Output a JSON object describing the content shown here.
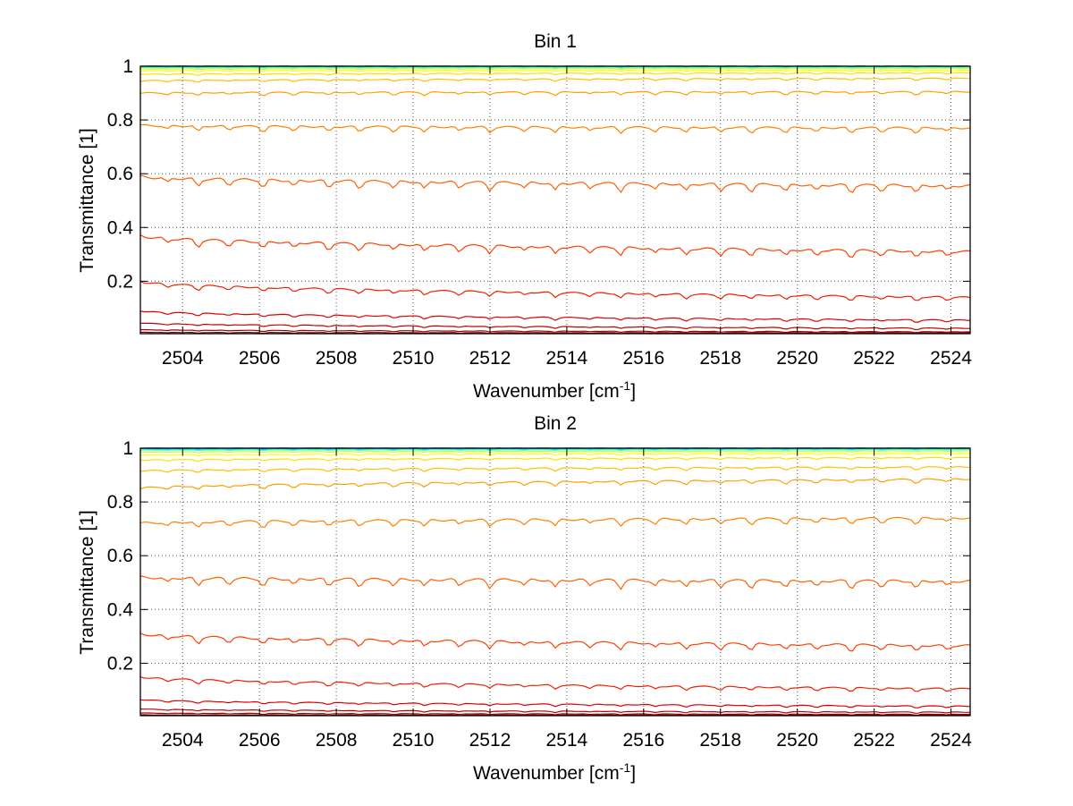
{
  "chart_data": [
    {
      "type": "line",
      "title": "Bin 1",
      "xlabel": "Wavenumber [cm",
      "xlabel_sup": "-1",
      "xlabel_tail": "]",
      "ylabel": "Transmittance [1]",
      "xlim": [
        2502.9,
        2524.5
      ],
      "ylim": [
        0.005,
        1.0
      ],
      "xticks": [
        2504,
        2506,
        2508,
        2510,
        2512,
        2514,
        2516,
        2518,
        2520,
        2522,
        2524
      ],
      "xtick_labels": [
        "2504",
        "2506",
        "2508",
        "2510",
        "2512",
        "2514",
        "2516",
        "2518",
        "2520",
        "2522",
        "2524"
      ],
      "yticks": [
        0.2,
        0.4,
        0.6,
        0.8,
        1.0
      ],
      "ytick_labels": [
        "0.2",
        "0.4",
        "0.6",
        "0.8",
        "1"
      ],
      "grid": true,
      "dip_positions": [
        2503.6,
        2504.4,
        2505.2,
        2506.1,
        2506.9,
        2507.8,
        2508.6,
        2509.5,
        2510.3,
        2511.2,
        2512.0,
        2512.9,
        2513.7,
        2514.6,
        2515.4,
        2516.3,
        2517.1,
        2518.0,
        2518.8,
        2519.7,
        2520.5,
        2521.4,
        2522.2,
        2523.1,
        2523.9
      ],
      "series": [
        {
          "start": 1.0,
          "end": 1.0,
          "color": "#00008f"
        },
        {
          "start": 0.999,
          "end": 0.999,
          "color": "#0040ff"
        },
        {
          "start": 0.998,
          "end": 0.998,
          "color": "#00bfff"
        },
        {
          "start": 0.995,
          "end": 0.996,
          "color": "#40ffbf"
        },
        {
          "start": 0.99,
          "end": 0.992,
          "color": "#bfff40"
        },
        {
          "start": 0.983,
          "end": 0.985,
          "color": "#ffff00"
        },
        {
          "start": 0.97,
          "end": 0.975,
          "color": "#ffdf00"
        },
        {
          "start": 0.945,
          "end": 0.955,
          "color": "#ffbf00"
        },
        {
          "start": 0.9,
          "end": 0.905,
          "color": "#ff9f00"
        },
        {
          "start": 0.78,
          "end": 0.77,
          "color": "#ff8000"
        },
        {
          "start": 0.59,
          "end": 0.555,
          "color": "#ff6000"
        },
        {
          "start": 0.37,
          "end": 0.31,
          "color": "#ff4000"
        },
        {
          "start": 0.2,
          "end": 0.14,
          "color": "#ef2000"
        },
        {
          "start": 0.09,
          "end": 0.055,
          "color": "#df0000"
        },
        {
          "start": 0.045,
          "end": 0.025,
          "color": "#bf0000"
        },
        {
          "start": 0.02,
          "end": 0.012,
          "color": "#9f0000"
        },
        {
          "start": 0.01,
          "end": 0.008,
          "color": "#800000"
        }
      ]
    },
    {
      "type": "line",
      "title": "Bin 2",
      "xlabel": "Wavenumber [cm",
      "xlabel_sup": "-1",
      "xlabel_tail": "]",
      "ylabel": "Transmittance [1]",
      "xlim": [
        2502.9,
        2524.5
      ],
      "ylim": [
        0.005,
        1.0
      ],
      "xticks": [
        2504,
        2506,
        2508,
        2510,
        2512,
        2514,
        2516,
        2518,
        2520,
        2522,
        2524
      ],
      "xtick_labels": [
        "2504",
        "2506",
        "2508",
        "2510",
        "2512",
        "2514",
        "2516",
        "2518",
        "2520",
        "2522",
        "2524"
      ],
      "yticks": [
        0.2,
        0.4,
        0.6,
        0.8,
        1.0
      ],
      "ytick_labels": [
        "0.2",
        "0.4",
        "0.6",
        "0.8",
        "1"
      ],
      "grid": true,
      "dip_positions": [
        2503.6,
        2504.4,
        2505.2,
        2506.1,
        2506.9,
        2507.8,
        2508.6,
        2509.5,
        2510.3,
        2511.2,
        2512.0,
        2512.9,
        2513.7,
        2514.6,
        2515.4,
        2516.3,
        2517.1,
        2518.0,
        2518.8,
        2519.7,
        2520.5,
        2521.4,
        2522.2,
        2523.1,
        2523.9
      ],
      "series": [
        {
          "start": 1.0,
          "end": 1.0,
          "color": "#00008f"
        },
        {
          "start": 0.999,
          "end": 0.999,
          "color": "#0040ff"
        },
        {
          "start": 0.997,
          "end": 0.998,
          "color": "#00bfff"
        },
        {
          "start": 0.993,
          "end": 0.995,
          "color": "#40ffbf"
        },
        {
          "start": 0.985,
          "end": 0.99,
          "color": "#bfff40"
        },
        {
          "start": 0.975,
          "end": 0.98,
          "color": "#ffff00"
        },
        {
          "start": 0.955,
          "end": 0.965,
          "color": "#ffdf00"
        },
        {
          "start": 0.915,
          "end": 0.93,
          "color": "#ffbf00"
        },
        {
          "start": 0.85,
          "end": 0.885,
          "color": "#ff9f00"
        },
        {
          "start": 0.72,
          "end": 0.74,
          "color": "#ff8000"
        },
        {
          "start": 0.52,
          "end": 0.505,
          "color": "#ff6000"
        },
        {
          "start": 0.31,
          "end": 0.265,
          "color": "#ff4000"
        },
        {
          "start": 0.15,
          "end": 0.105,
          "color": "#ef2000"
        },
        {
          "start": 0.065,
          "end": 0.04,
          "color": "#df0000"
        },
        {
          "start": 0.03,
          "end": 0.018,
          "color": "#bf0000"
        },
        {
          "start": 0.015,
          "end": 0.01,
          "color": "#9f0000"
        },
        {
          "start": 0.008,
          "end": 0.007,
          "color": "#800000"
        }
      ]
    }
  ]
}
